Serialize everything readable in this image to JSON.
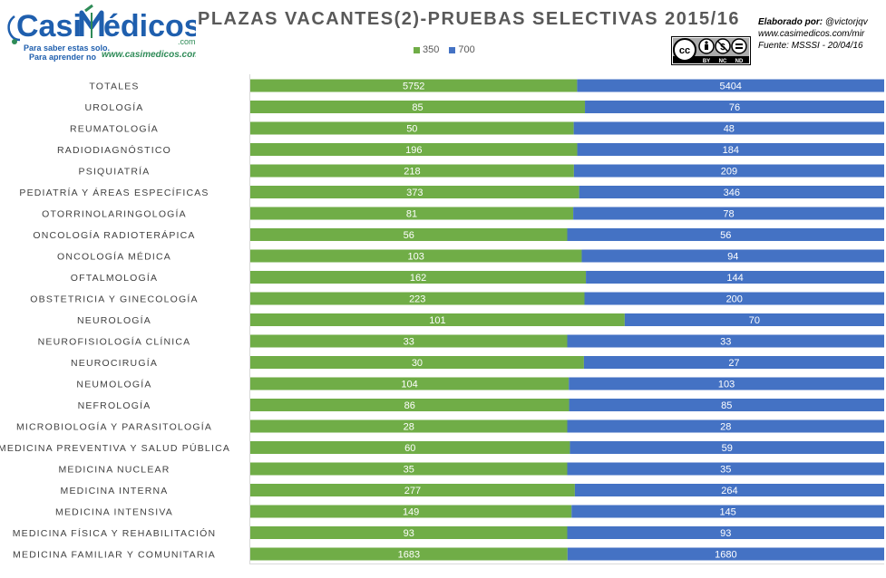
{
  "header": {
    "brand": {
      "name_part1": "Casi",
      "name_part2": "édicos",
      "domain_suffix": ".com",
      "tagline_line1": "Para saber estas solo.",
      "tagline_line2": "Para aprender no",
      "url": "www.casimedicos.com"
    },
    "credits": {
      "line1_label": "Elaborado por:",
      "line1_value": "@victorjqv",
      "line2": "www.casimedicos.com/mir",
      "line3": "Fuente: MSSSI - 20/04/16"
    },
    "license": {
      "cc": "cc",
      "tags": [
        "BY",
        "NC",
        "ND"
      ]
    }
  },
  "colors": {
    "series_350": "#70ad47",
    "series_700": "#4472c4",
    "title_text": "#595959",
    "logo_blue": "#1f5fae",
    "logo_green": "#2e8b57"
  },
  "chart_data": {
    "type": "bar",
    "orientation": "horizontal",
    "stacked": "100%",
    "title": "PLAZAS VACANTES(2)-PRUEBAS SELECTIVAS 2015/16",
    "legend_position": "top",
    "grid": false,
    "categories": [
      "TOTALES",
      "UROLOGÍA",
      "REUMATOLOGÍA",
      "RADIODIAGNÓSTICO",
      "PSIQUIATRÍA",
      "PEDIATRÍA Y ÁREAS ESPECÍFICAS",
      "OTORRINOLARINGOLOGÍA",
      "ONCOLOGÍA RADIOTERÁPICA",
      "ONCOLOGÍA MÉDICA",
      "OFTALMOLOGÍA",
      "OBSTETRICIA Y GINECOLOGÍA",
      "NEUROLOGÍA",
      "NEUROFISIOLOGÍA CLÍNICA",
      "NEUROCIRUGÍA",
      "NEUMOLOGÍA",
      "NEFROLOGÍA",
      "MICROBIOLOGÍA Y PARASITOLOGÍA",
      "MEDICINA PREVENTIVA Y SALUD PÚBLICA",
      "MEDICINA NUCLEAR",
      "MEDICINA INTERNA",
      "MEDICINA INTENSIVA",
      "MEDICINA FÍSICA Y REHABILITACIÓN",
      "MEDICINA FAMILIAR Y COMUNITARIA"
    ],
    "series": [
      {
        "name": "350",
        "color": "#70ad47",
        "values": [
          5752,
          85,
          50,
          196,
          218,
          373,
          81,
          56,
          103,
          162,
          223,
          101,
          33,
          30,
          104,
          86,
          28,
          60,
          35,
          277,
          149,
          93,
          1683
        ]
      },
      {
        "name": "700",
        "color": "#4472c4",
        "values": [
          5404,
          76,
          48,
          184,
          209,
          346,
          78,
          56,
          94,
          144,
          200,
          70,
          33,
          27,
          103,
          85,
          28,
          59,
          35,
          264,
          145,
          93,
          1680
        ]
      }
    ]
  }
}
